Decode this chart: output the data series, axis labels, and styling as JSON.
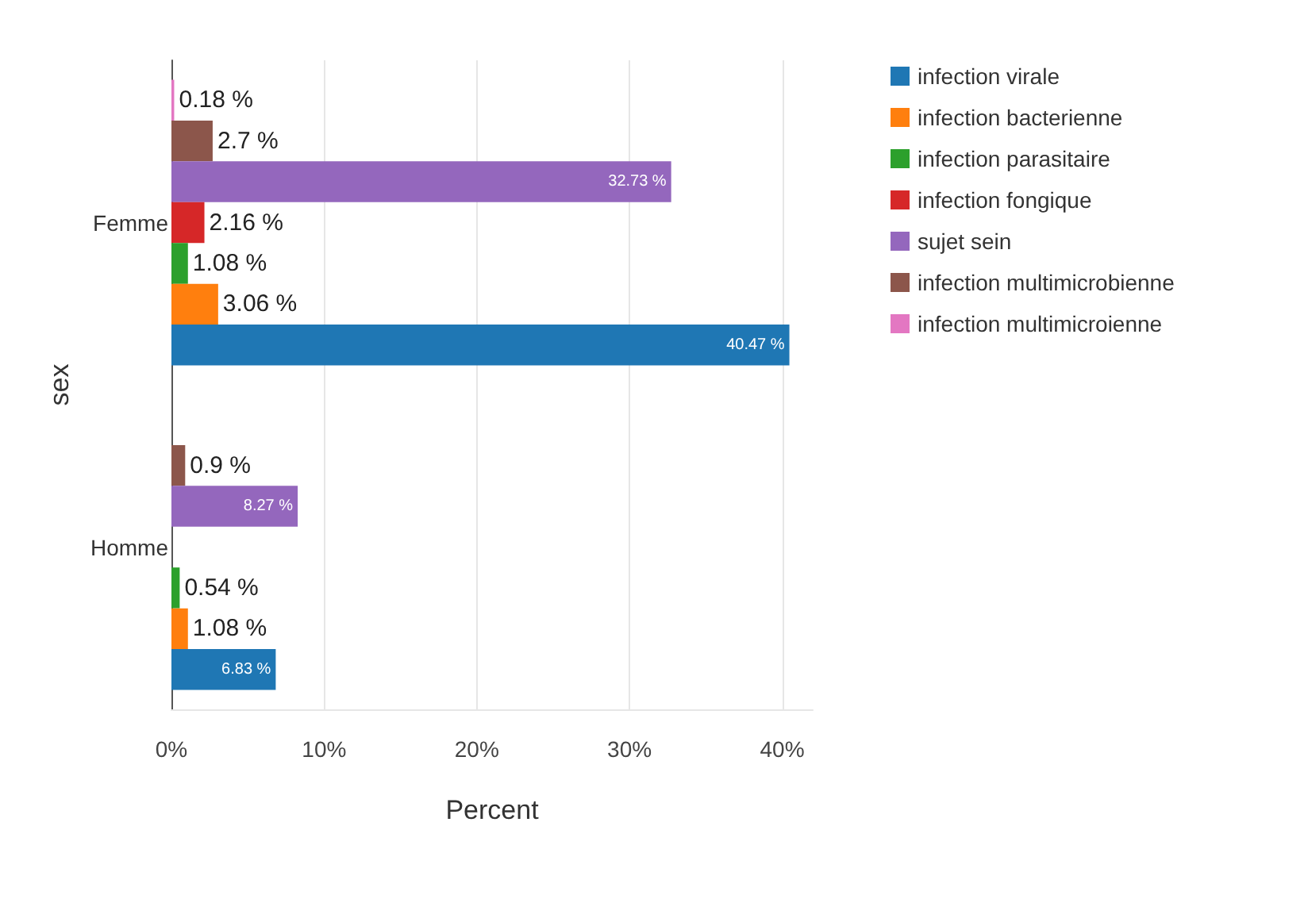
{
  "chart_data": {
    "type": "bar",
    "orientation": "horizontal",
    "xlabel": "Percent",
    "ylabel": "sex",
    "categories": [
      "Femme",
      "Homme"
    ],
    "series": [
      {
        "name": "infection virale",
        "color": "#1f77b4",
        "values": [
          40.47,
          6.83
        ],
        "value_labels": [
          "40.47 %",
          "6.83 %"
        ]
      },
      {
        "name": "infection bacterienne",
        "color": "#ff7f0e",
        "values": [
          3.06,
          1.08
        ],
        "value_labels": [
          "3.06 %",
          "1.08 %"
        ]
      },
      {
        "name": "infection parasitaire",
        "color": "#2ca02c",
        "values": [
          1.08,
          0.54
        ],
        "value_labels": [
          "1.08 %",
          "0.54 %"
        ]
      },
      {
        "name": "infection fongique",
        "color": "#d62728",
        "values": [
          2.16,
          null
        ],
        "value_labels": [
          "2.16 %",
          null
        ]
      },
      {
        "name": "sujet sein",
        "color": "#9467bd",
        "values": [
          32.73,
          8.27
        ],
        "value_labels": [
          "32.73 %",
          "8.27 %"
        ]
      },
      {
        "name": "infection multimicrobienne",
        "color": "#8c564b",
        "values": [
          2.7,
          0.9
        ],
        "value_labels": [
          "2.7 %",
          "0.9 %"
        ]
      },
      {
        "name": "infection multimicroienne",
        "color": "#e377c2",
        "values": [
          0.18,
          null
        ],
        "value_labels": [
          "0.18 %",
          null
        ]
      }
    ],
    "xlim": [
      0,
      42
    ],
    "xticks": [
      {
        "value": 0,
        "label": "0%"
      },
      {
        "value": 10,
        "label": "10%"
      },
      {
        "value": 20,
        "label": "20%"
      },
      {
        "value": 30,
        "label": "30%"
      },
      {
        "value": 40,
        "label": "40%"
      }
    ],
    "grid": "x",
    "legend": "top right"
  }
}
